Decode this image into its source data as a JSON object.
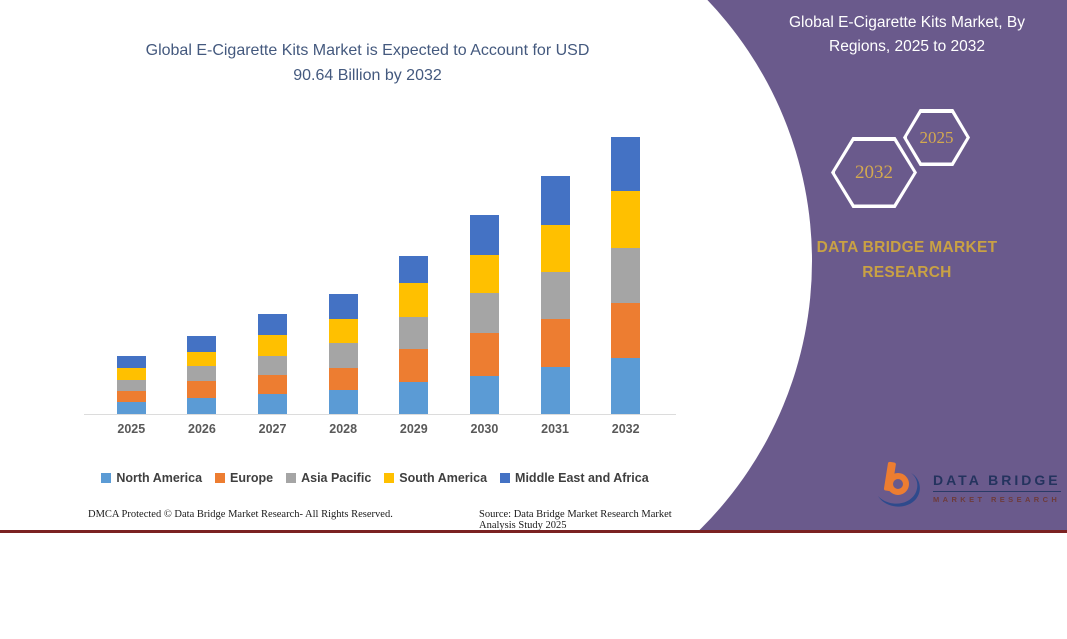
{
  "header": {
    "title_line1": "Global E-Cigarette Kits Market is Expected to Account for USD",
    "title_line2": "90.64 Billion by 2032"
  },
  "side_panel": {
    "title_line1": "Global E-Cigarette Kits Market, By",
    "title_line2": "Regions, 2025 to 2032",
    "hexagon_back_year": "2032",
    "hexagon_front_year": "2025",
    "brand_line1": "DATA BRIDGE MARKET",
    "brand_line2": "RESEARCH",
    "logo_text": "DATA BRIDGE",
    "logo_subtext": "MARKET RESEARCH"
  },
  "footer": {
    "dmca": "DMCA Protected © Data Bridge Market Research-  All Rights Reserved.",
    "source": "Source: Data Bridge Market Research  Market Analysis Study 2025"
  },
  "colors": {
    "panel_purple": "#6A5A8C",
    "accent_gold": "#C9A144",
    "title_blue": "#44597E",
    "bottom_line_maroon": "#7B2222"
  },
  "chart_data": {
    "type": "bar",
    "stacked": true,
    "title": "Global E-Cigarette Kits Market is Expected to Account for USD 90.64 Billion by 2032",
    "unit": "USD Billion",
    "categories": [
      "2025",
      "2026",
      "2027",
      "2028",
      "2029",
      "2030",
      "2031",
      "2032"
    ],
    "series": [
      {
        "name": "North America",
        "color": "#5B9BD5",
        "values": [
          3.9,
          5.2,
          6.5,
          7.9,
          10.6,
          12.4,
          15.5,
          18.2
        ]
      },
      {
        "name": "Europe",
        "color": "#ED7D31",
        "values": [
          3.5,
          5.5,
          6.3,
          7.3,
          10.6,
          14.0,
          15.8,
          18.2
        ]
      },
      {
        "name": "Asia Pacific",
        "color": "#A5A5A5",
        "values": [
          3.8,
          5.0,
          6.3,
          8.0,
          10.5,
          13.1,
          15.3,
          18.1
        ]
      },
      {
        "name": "South America",
        "color": "#FFC000",
        "values": [
          4.0,
          4.6,
          6.8,
          8.0,
          11.1,
          12.6,
          15.3,
          18.6
        ]
      },
      {
        "name": "Middle East and Africa",
        "color": "#4472C4",
        "values": [
          3.9,
          5.2,
          6.8,
          8.1,
          8.9,
          13.0,
          16.0,
          17.5
        ]
      }
    ],
    "totals": [
      19.1,
      25.5,
      32.7,
      39.3,
      51.7,
      65.1,
      77.9,
      90.64
    ],
    "xlabel": "",
    "ylabel": "",
    "ylim": [
      0,
      95
    ],
    "grid": false,
    "y_axis_visible": false,
    "legend_position": "bottom"
  }
}
